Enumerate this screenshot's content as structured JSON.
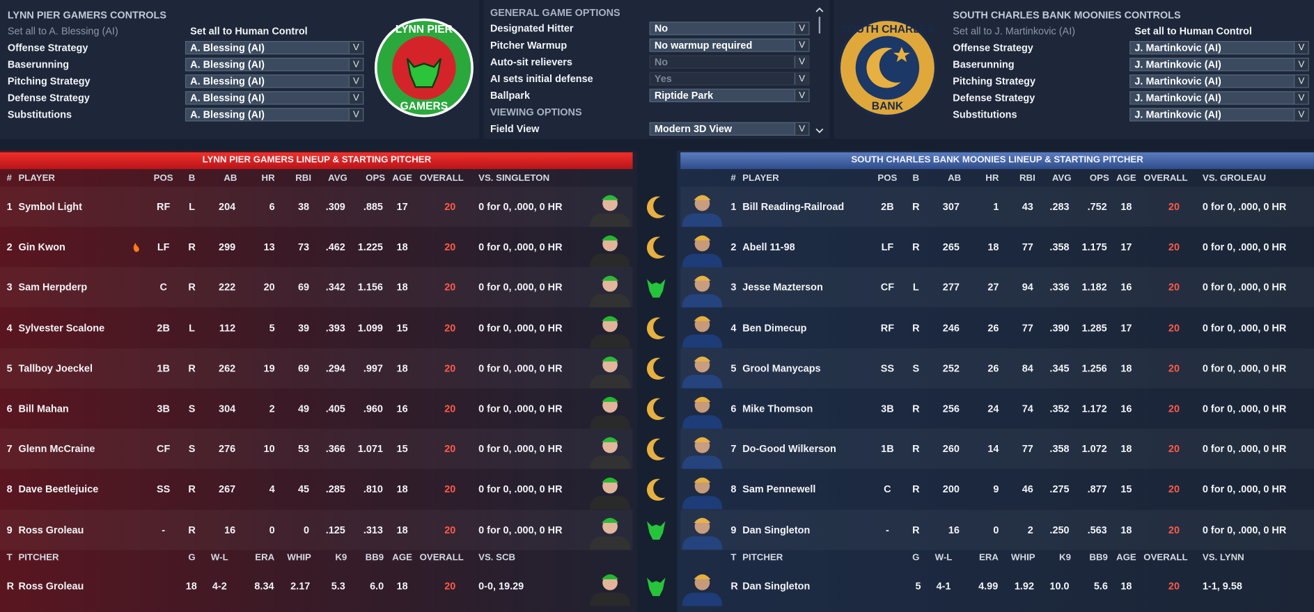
{
  "left_controls": {
    "title": "LYNN PIER GAMERS CONTROLS",
    "set_all_ai": "Set all to A. Blessing (AI)",
    "set_all_human": "Set all to Human Control",
    "rows": [
      [
        "Offense Strategy",
        "A. Blessing (AI)"
      ],
      [
        "Baserunning",
        "A. Blessing (AI)"
      ],
      [
        "Pitching Strategy",
        "A. Blessing (AI)"
      ],
      [
        "Defense Strategy",
        "A. Blessing (AI)"
      ],
      [
        "Substitutions",
        "A. Blessing (AI)"
      ]
    ]
  },
  "left_logo": [
    "LYNN PIER",
    "GAMERS"
  ],
  "options": {
    "general_title": "GENERAL GAME OPTIONS",
    "rows": [
      [
        "Designated Hitter",
        "No"
      ],
      [
        "Pitcher Warmup",
        "No warmup required"
      ],
      [
        "Auto-sit relievers",
        "No"
      ],
      [
        "AI sets initial defense",
        "Yes"
      ],
      [
        "Ballpark",
        "Riptide Park"
      ]
    ],
    "viewing_title": "VIEWING OPTIONS",
    "viewing_rows": [
      [
        "Field View",
        "Modern 3D View"
      ]
    ]
  },
  "right_logo": [
    "SOUTH CHARLES",
    "BANK"
  ],
  "right_controls": {
    "title": "SOUTH CHARLES BANK MOONIES CONTROLS",
    "set_all_ai": "Set all to J. Martinkovic (AI)",
    "set_all_human": "Set all to Human Control",
    "rows": [
      [
        "Offense Strategy",
        "J. Martinkovic (AI)"
      ],
      [
        "Baserunning",
        "J. Martinkovic (AI)"
      ],
      [
        "Pitching Strategy",
        "J. Martinkovic (AI)"
      ],
      [
        "Defense Strategy",
        "J. Martinkovic (AI)"
      ],
      [
        "Substitutions",
        "J. Martinkovic (AI)"
      ]
    ]
  },
  "left_lineup": {
    "title": "LYNN PIER GAMERS LINEUP & STARTING PITCHER",
    "headers": [
      "#",
      "PLAYER",
      "POS",
      "B",
      "AB",
      "HR",
      "RBI",
      "AVG",
      "OPS",
      "AGE",
      "OVERALL",
      "VS. SINGLETON"
    ],
    "rows": [
      [
        "1",
        "Symbol Light",
        "RF",
        "L",
        "204",
        "6",
        "38",
        ".309",
        ".885",
        "17",
        "20",
        "0 for 0, .000, 0 HR"
      ],
      [
        "2",
        "Gin Kwon",
        "LF",
        "R",
        "299",
        "13",
        "73",
        ".462",
        "1.225",
        "18",
        "20",
        "0 for 0, .000, 0 HR"
      ],
      [
        "3",
        "Sam Herpderp",
        "C",
        "R",
        "222",
        "20",
        "69",
        ".342",
        "1.156",
        "18",
        "20",
        "0 for 0, .000, 0 HR"
      ],
      [
        "4",
        "Sylvester Scalone",
        "2B",
        "L",
        "112",
        "5",
        "39",
        ".393",
        "1.099",
        "15",
        "20",
        "0 for 0, .000, 0 HR"
      ],
      [
        "5",
        "Tallboy Joeckel",
        "1B",
        "R",
        "262",
        "19",
        "69",
        ".294",
        ".997",
        "18",
        "20",
        "0 for 0, .000, 0 HR"
      ],
      [
        "6",
        "Bill Mahan",
        "3B",
        "S",
        "304",
        "2",
        "49",
        ".405",
        ".960",
        "16",
        "20",
        "0 for 0, .000, 0 HR"
      ],
      [
        "7",
        "Glenn McCraine",
        "CF",
        "S",
        "276",
        "10",
        "53",
        ".366",
        "1.071",
        "15",
        "20",
        "0 for 0, .000, 0 HR"
      ],
      [
        "8",
        "Dave Beetlejuice",
        "SS",
        "R",
        "267",
        "4",
        "45",
        ".285",
        ".810",
        "18",
        "20",
        "0 for 0, .000, 0 HR"
      ],
      [
        "9",
        "Ross Groleau",
        "-",
        "R",
        "16",
        "0",
        "0",
        ".125",
        ".313",
        "18",
        "20",
        "0 for 0, .000, 0 HR"
      ]
    ],
    "pitcher_headers": [
      "T",
      "PITCHER",
      "G",
      "W-L",
      "ERA",
      "WHIP",
      "K9",
      "BB9",
      "AGE",
      "OVERALL",
      "VS. SCB"
    ],
    "pitcher": [
      "R",
      "Ross Groleau",
      "18",
      "4-2",
      "8.34",
      "2.17",
      "5.3",
      "6.0",
      "18",
      "20",
      "0-0, 19.29"
    ]
  },
  "right_lineup": {
    "title": "SOUTH CHARLES BANK MOONIES LINEUP & STARTING PITCHER",
    "headers": [
      "#",
      "PLAYER",
      "POS",
      "B",
      "AB",
      "HR",
      "RBI",
      "AVG",
      "OPS",
      "AGE",
      "OVERALL",
      "VS. GROLEAU"
    ],
    "rows": [
      [
        "1",
        "Bill Reading-Railroad",
        "2B",
        "R",
        "307",
        "1",
        "43",
        ".283",
        ".752",
        "18",
        "20",
        "0 for 0, .000, 0 HR"
      ],
      [
        "2",
        "Abell 11-98",
        "LF",
        "R",
        "265",
        "18",
        "77",
        ".358",
        "1.175",
        "17",
        "20",
        "0 for 0, .000, 0 HR"
      ],
      [
        "3",
        "Jesse Mazterson",
        "CF",
        "L",
        "277",
        "27",
        "94",
        ".336",
        "1.182",
        "16",
        "20",
        "0 for 0, .000, 0 HR"
      ],
      [
        "4",
        "Ben Dimecup",
        "RF",
        "R",
        "246",
        "26",
        "77",
        ".390",
        "1.285",
        "17",
        "20",
        "0 for 0, .000, 0 HR"
      ],
      [
        "5",
        "Grool Manycaps",
        "SS",
        "S",
        "252",
        "26",
        "84",
        ".345",
        "1.256",
        "18",
        "20",
        "0 for 0, .000, 0 HR"
      ],
      [
        "6",
        "Mike Thomson",
        "3B",
        "R",
        "256",
        "24",
        "74",
        ".352",
        "1.172",
        "16",
        "20",
        "0 for 0, .000, 0 HR"
      ],
      [
        "7",
        "Do-Good Wilkerson",
        "1B",
        "R",
        "260",
        "14",
        "77",
        ".358",
        "1.072",
        "18",
        "20",
        "0 for 0, .000, 0 HR"
      ],
      [
        "8",
        "Sam Pennewell",
        "C",
        "R",
        "200",
        "9",
        "46",
        ".275",
        ".877",
        "15",
        "20",
        "0 for 0, .000, 0 HR"
      ],
      [
        "9",
        "Dan Singleton",
        "-",
        "R",
        "16",
        "0",
        "2",
        ".250",
        ".563",
        "18",
        "20",
        "0 for 0, .000, 0 HR"
      ]
    ],
    "pitcher_headers": [
      "T",
      "PITCHER",
      "G",
      "W-L",
      "ERA",
      "WHIP",
      "K9",
      "BB9",
      "AGE",
      "OVERALL",
      "VS. LYNN"
    ],
    "pitcher": [
      "R",
      "Dan Singleton",
      "5",
      "4-1",
      "4.99",
      "1.92",
      "10.0",
      "5.6",
      "18",
      "20",
      "1-1, 9.58"
    ]
  }
}
